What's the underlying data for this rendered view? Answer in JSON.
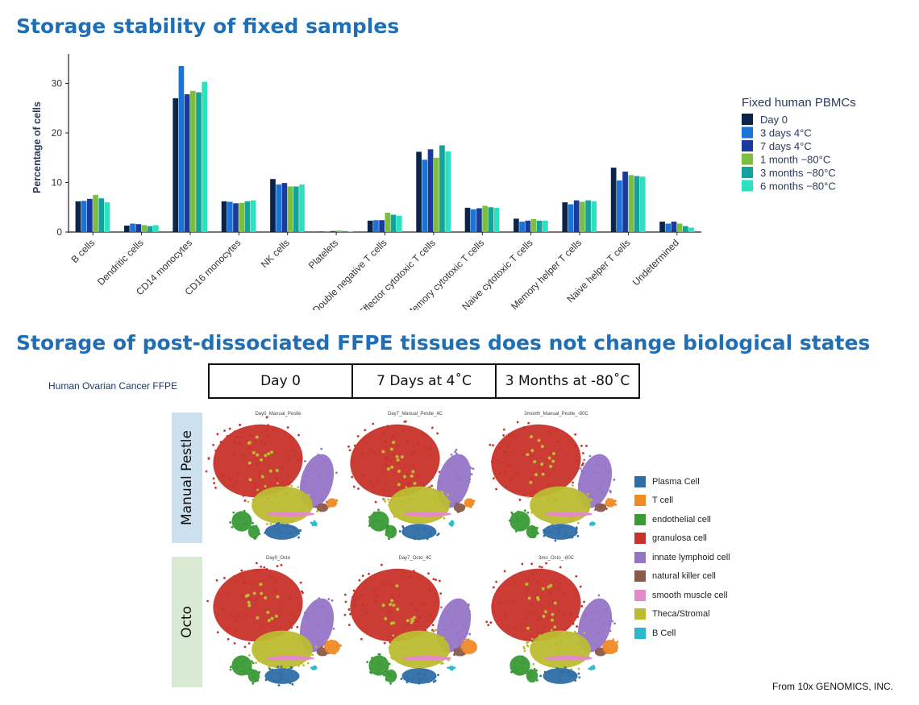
{
  "titles": {
    "top": "Storage stability of fixed samples",
    "bottom": "Storage of post-dissociated FFPE tissues does not change biological states"
  },
  "chart_data": {
    "type": "bar",
    "title": "",
    "xlabel": "",
    "ylabel": "Percentage of cells",
    "ylim": [
      0,
      35
    ],
    "yticks": [
      0,
      10,
      20,
      30
    ],
    "legend_title": "Fixed human PBMCs",
    "legend_position": "right",
    "categories": [
      "B cells",
      "Dendritic cells",
      "CD14 monocytes",
      "CD16 monocytes",
      "NK cells",
      "Platelets",
      "Double negative T cells",
      "Effector cytotoxic T cells",
      "Memory cytotoxic T cells",
      "Naive cytotoxic T cells",
      "Memory helper T cells",
      "Naive helper T cells",
      "Undetermined"
    ],
    "series": [
      {
        "name": "Day 0",
        "color": "#0d2449",
        "values": [
          6.2,
          1.3,
          27.0,
          6.2,
          10.7,
          0.1,
          2.3,
          16.2,
          4.9,
          2.7,
          6.0,
          13.0,
          2.1
        ]
      },
      {
        "name": "3 days 4°C",
        "color": "#1a74d8",
        "values": [
          6.3,
          1.7,
          33.5,
          6.1,
          9.6,
          0.1,
          2.4,
          14.6,
          4.6,
          2.1,
          5.6,
          10.4,
          1.7
        ]
      },
      {
        "name": "7 days 4°C",
        "color": "#1a3a9e",
        "values": [
          6.7,
          1.6,
          27.8,
          5.8,
          9.9,
          0.2,
          2.4,
          16.7,
          4.8,
          2.3,
          6.4,
          12.2,
          2.1
        ]
      },
      {
        "name": "1 month −80°C",
        "color": "#7dbd3f",
        "values": [
          7.5,
          1.4,
          28.5,
          5.9,
          9.2,
          0.3,
          3.9,
          15.0,
          5.3,
          2.6,
          6.1,
          11.5,
          1.7
        ]
      },
      {
        "name": "3 months −80°C",
        "color": "#14a39b",
        "values": [
          6.8,
          1.2,
          28.2,
          6.2,
          9.2,
          0.2,
          3.5,
          17.5,
          5.0,
          2.3,
          6.4,
          11.3,
          1.2
        ]
      },
      {
        "name": "6 months −80°C",
        "color": "#2de0c0",
        "values": [
          6.0,
          1.4,
          30.3,
          6.4,
          9.6,
          0.1,
          3.3,
          16.3,
          4.9,
          2.3,
          6.2,
          11.2,
          0.9
        ]
      }
    ]
  },
  "ffpe": {
    "sample_label": "Human Ovarian Cancer FFPE",
    "conditions": [
      "Day 0",
      "7 Days at 4˚C",
      "3 Months at -80˚C"
    ],
    "rows": [
      {
        "label": "Manual Pestle",
        "band_color": "#cde0f0",
        "panel_titles": [
          "Day0_Manual_Pestle",
          "Day7_Manual_Pestle_4C",
          "3month_Manual_Pestle_-80C"
        ]
      },
      {
        "label": "Octo",
        "band_color": "#d8ead3",
        "panel_titles": [
          "Day0_Octo",
          "Day7_Octo_4C",
          "3mo_Octo_-80C"
        ]
      }
    ],
    "cell_types": [
      {
        "name": "Plasma Cell",
        "color": "#2e6ea6"
      },
      {
        "name": "T cell",
        "color": "#f08a24"
      },
      {
        "name": "endothelial cell",
        "color": "#3a9a36"
      },
      {
        "name": "granulosa cell",
        "color": "#c8322a"
      },
      {
        "name": "innate lymphoid cell",
        "color": "#9575c8"
      },
      {
        "name": "natural killer cell",
        "color": "#8c5a4a"
      },
      {
        "name": "smooth muscle cell",
        "color": "#e38bc8"
      },
      {
        "name": "Theca/Stromal",
        "color": "#bcbc32"
      },
      {
        "name": "B Cell",
        "color": "#28b9cc"
      }
    ]
  },
  "footer": "From 10x GENOMICS, INC."
}
